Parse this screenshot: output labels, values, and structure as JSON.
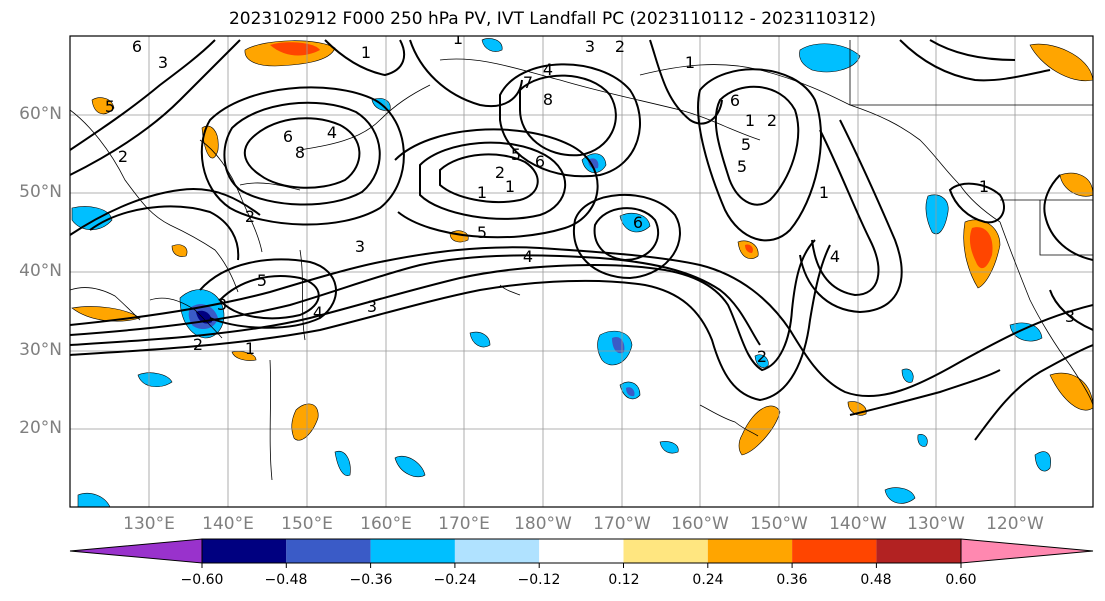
{
  "title": "2023102912 F000 250 hPa PV, IVT Landfall PC (2023110112 - 2023110312)",
  "lat_labels": [
    "60°N",
    "50°N",
    "40°N",
    "30°N",
    "20°N"
  ],
  "lon_labels": [
    "130°E",
    "140°E",
    "150°E",
    "160°E",
    "170°E",
    "180°W",
    "170°W",
    "160°W",
    "150°W",
    "140°W",
    "130°W",
    "120°W"
  ],
  "colorbar": {
    "ticks": [
      "−0.60",
      "−0.48",
      "−0.36",
      "−0.24",
      "−0.12",
      "0.12",
      "0.24",
      "0.36",
      "0.48",
      "0.60"
    ],
    "colors": [
      "#9932CC",
      "#000080",
      "#3A5BC7",
      "#00BFFF",
      "#B0E2FF",
      "#FFFFFF",
      "#FFE680",
      "#FFA500",
      "#FF4500",
      "#B22222",
      "#FF88B0"
    ]
  },
  "contour_labels": [
    "6",
    "3",
    "1",
    "5",
    "2",
    "8",
    "4",
    "6",
    "1",
    "3",
    "2",
    "4",
    "7",
    "8",
    "6",
    "1",
    "5",
    "2",
    "1",
    "1",
    "6",
    "1",
    "5",
    "2",
    "1",
    "2",
    "5",
    "4",
    "3",
    "3",
    "2",
    "1",
    "6",
    "5",
    "2",
    "5",
    "4",
    "1",
    "3",
    "4",
    "3"
  ]
}
